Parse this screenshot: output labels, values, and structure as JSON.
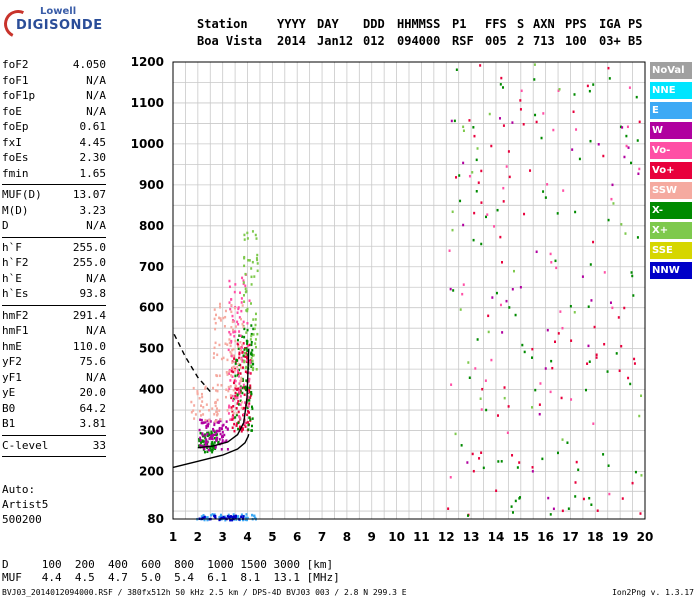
{
  "logo": {
    "line1": "Lowell",
    "line2": "DIGISONDE"
  },
  "header": {
    "row1": [
      "Station",
      "YYYY",
      "DAY",
      "DDD",
      "HHMMSS",
      "P1",
      "FFS",
      "S",
      "AXN",
      "PPS",
      "IGA",
      "PS"
    ],
    "row2": [
      "Boa Vista",
      "2014",
      "Jan12",
      "012",
      "094000",
      "RSF",
      "005",
      "2",
      "713",
      "100",
      "03+",
      "B5"
    ]
  },
  "params": [
    [
      {
        "name": "foF2",
        "value": "4.050"
      },
      {
        "name": "foF1",
        "value": "N/A"
      },
      {
        "name": "foF1p",
        "value": "N/A"
      },
      {
        "name": "foE",
        "value": "N/A"
      },
      {
        "name": "foEp",
        "value": "0.61"
      },
      {
        "name": "fxI",
        "value": "4.45"
      },
      {
        "name": "foEs",
        "value": "2.30"
      },
      {
        "name": "fmin",
        "value": "1.65"
      }
    ],
    [
      {
        "name": "MUF(D)",
        "value": "13.07"
      },
      {
        "name": "M(D)",
        "value": "3.23"
      },
      {
        "name": "D",
        "value": "N/A"
      }
    ],
    [
      {
        "name": "h`F",
        "value": "255.0"
      },
      {
        "name": "h`F2",
        "value": "255.0"
      },
      {
        "name": "h`E",
        "value": "N/A"
      },
      {
        "name": "h`Es",
        "value": "93.8"
      }
    ],
    [
      {
        "name": "hmF2",
        "value": "291.4"
      },
      {
        "name": "hmF1",
        "value": "N/A"
      },
      {
        "name": "hmE",
        "value": "110.0"
      },
      {
        "name": "yF2",
        "value": "75.6"
      },
      {
        "name": "yF1",
        "value": "N/A"
      },
      {
        "name": "yE",
        "value": "20.0"
      },
      {
        "name": "B0",
        "value": "64.2"
      },
      {
        "name": "B1",
        "value": "3.81"
      }
    ],
    [
      {
        "name": "C-level",
        "value": "33"
      }
    ]
  ],
  "auto": {
    "line1": "Auto:",
    "line2": "Artist5",
    "line3": "500200"
  },
  "muf_table": {
    "row_d": "D     100  200  400  600  800  1000 1500 3000 [km]",
    "row_muf": "MUF   4.4  4.5  4.7  5.0  5.4  6.1  8.1  13.1 [MHz]"
  },
  "footer": "BVJ03_2014012094000.RSF / 380fx512h 50 kHz 2.5 km / DPS-4D BVJ03 003 / 2.8 N 299.3 E",
  "version": "Ion2Png v. 1.3.17",
  "legend": [
    {
      "label": "NoVal",
      "color": "#a0a0a0"
    },
    {
      "label": "NNE",
      "color": "#00e5ff"
    },
    {
      "label": "E",
      "color": "#3da9f5"
    },
    {
      "label": "W",
      "color": "#b0009f"
    },
    {
      "label": "Vo-",
      "color": "#ff4fa5"
    },
    {
      "label": "Vo+",
      "color": "#e8003c"
    },
    {
      "label": "SSW",
      "color": "#f5aaa0"
    },
    {
      "label": "X-",
      "color": "#008a00"
    },
    {
      "label": "X+",
      "color": "#7ec94d"
    },
    {
      "label": "SSE",
      "color": "#d6d600"
    },
    {
      "label": "NNW",
      "color": "#0000c8"
    }
  ],
  "chart_data": {
    "type": "scatter",
    "x_ticks": [
      1,
      2,
      3,
      4,
      5,
      6,
      7,
      8,
      9,
      10,
      11,
      12,
      13,
      14,
      15,
      16,
      17,
      18,
      19,
      20
    ],
    "y_ticks": [
      80,
      200,
      300,
      400,
      500,
      600,
      700,
      800,
      900,
      1000,
      1100,
      1200
    ],
    "xlim": [
      1,
      20
    ],
    "ylim": [
      80,
      1200
    ],
    "minor_grid_step_x": 0.5,
    "y_grid_step": 50,
    "grid": true,
    "curves": [
      {
        "name": "profile",
        "style": "solid",
        "color": "#000000",
        "points": [
          [
            1,
            210
          ],
          [
            2,
            225
          ],
          [
            3,
            240
          ],
          [
            3.6,
            255
          ],
          [
            3.9,
            270
          ],
          [
            4.02,
            285
          ],
          [
            4.05,
            291
          ]
        ]
      },
      {
        "name": "trace",
        "style": "solid",
        "color": "#000000",
        "points": [
          [
            2.0,
            258
          ],
          [
            2.6,
            262
          ],
          [
            3.2,
            272
          ],
          [
            3.6,
            290
          ],
          [
            3.85,
            320
          ],
          [
            3.98,
            380
          ],
          [
            4.05,
            500
          ]
        ]
      },
      {
        "name": "extrapolation",
        "style": "dashed",
        "color": "#000000",
        "points": [
          [
            1.05,
            535
          ],
          [
            1.5,
            480
          ],
          [
            2.0,
            430
          ],
          [
            2.5,
            395
          ]
        ]
      }
    ],
    "clusters": [
      {
        "x": [
          2.0,
          2.8
        ],
        "y": [
          250,
          300
        ],
        "color": "#008a00",
        "n": 70
      },
      {
        "x": [
          2.0,
          3.2
        ],
        "y": [
          255,
          330
        ],
        "color": "#b0009f",
        "n": 90
      },
      {
        "x": [
          3.3,
          4.1
        ],
        "y": [
          300,
          520
        ],
        "color": "#e8003c",
        "n": 110
      },
      {
        "x": [
          3.4,
          4.2
        ],
        "y": [
          300,
          560
        ],
        "color": "#008a00",
        "n": 80
      },
      {
        "x": [
          3.2,
          4.1
        ],
        "y": [
          320,
          700
        ],
        "color": "#ff4fa5",
        "n": 90
      },
      {
        "x": [
          2.6,
          3.8
        ],
        "y": [
          330,
          620
        ],
        "color": "#f5aaa0",
        "n": 90
      },
      {
        "x": [
          1.6,
          2.8
        ],
        "y": [
          320,
          420
        ],
        "color": "#f5aaa0",
        "n": 40
      },
      {
        "x": [
          3.8,
          4.4
        ],
        "y": [
          450,
          800
        ],
        "color": "#7ec94d",
        "n": 60
      },
      {
        "x": [
          1.9,
          4.3
        ],
        "y": [
          80,
          95
        ],
        "color": "#3da9f5",
        "n": 60
      },
      {
        "x": [
          2.0,
          3.8
        ],
        "y": [
          80,
          92
        ],
        "color": "#0000c8",
        "n": 40
      },
      {
        "x": [
          12.0,
          19.9
        ],
        "y": [
          90,
          1200
        ],
        "color": "#e8003c",
        "n": 70
      },
      {
        "x": [
          12.0,
          19.9
        ],
        "y": [
          90,
          1200
        ],
        "color": "#008a00",
        "n": 80
      },
      {
        "x": [
          12.0,
          19.9
        ],
        "y": [
          90,
          1200
        ],
        "color": "#ff4fa5",
        "n": 40
      },
      {
        "x": [
          12.0,
          19.9
        ],
        "y": [
          90,
          1200
        ],
        "color": "#b0009f",
        "n": 30
      },
      {
        "x": [
          12.0,
          19.9
        ],
        "y": [
          90,
          1200
        ],
        "color": "#7ec94d",
        "n": 25
      }
    ]
  }
}
